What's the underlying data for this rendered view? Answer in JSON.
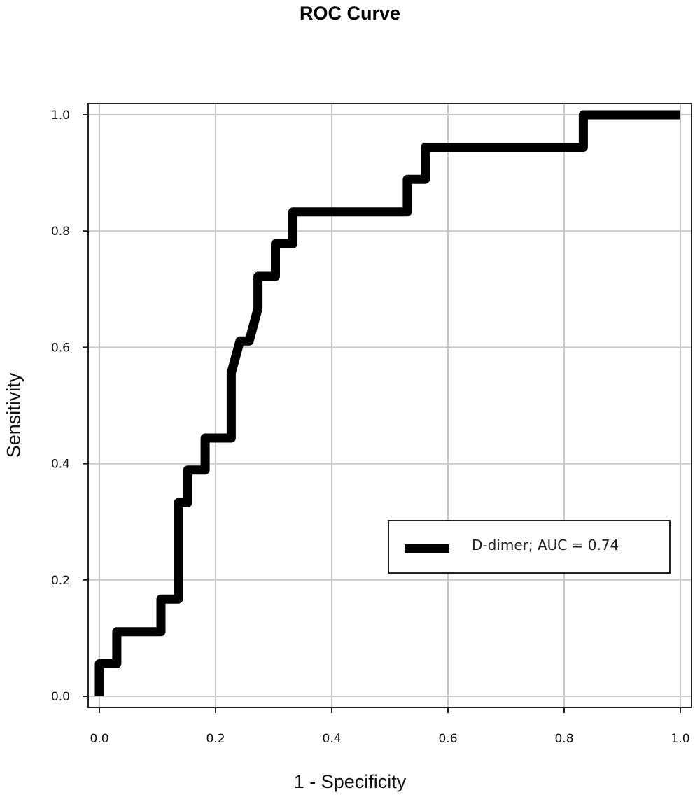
{
  "chart_data": {
    "type": "line",
    "title": "ROC Curve",
    "xlabel": "1 - Specificity",
    "ylabel": "Sensitivity",
    "xlim": [
      0,
      1
    ],
    "ylim": [
      0,
      1
    ],
    "x_ticks": [
      "0.0",
      "0.2",
      "0.4",
      "0.6",
      "0.8",
      "1.0"
    ],
    "y_ticks": [
      "0.0",
      "0.2",
      "0.4",
      "0.6",
      "0.8",
      "1.0"
    ],
    "grid": true,
    "legend_position": "lower right",
    "series": [
      {
        "name": "D-dimer; AUC = 0.74",
        "color": "#000000",
        "auc": 0.74,
        "x": [
          0,
          0,
          0.03,
          0.03,
          0.106,
          0.106,
          0.136,
          0.136,
          0.152,
          0.152,
          0.182,
          0.182,
          0.227,
          0.227,
          0.242,
          0.258,
          0.273,
          0.273,
          0.303,
          0.303,
          0.333,
          0.333,
          0.53,
          0.53,
          0.561,
          0.561,
          0.833,
          0.833,
          1.0
        ],
        "y": [
          0,
          0.056,
          0.056,
          0.111,
          0.111,
          0.167,
          0.167,
          0.333,
          0.333,
          0.389,
          0.389,
          0.444,
          0.444,
          0.556,
          0.611,
          0.611,
          0.667,
          0.722,
          0.722,
          0.778,
          0.778,
          0.833,
          0.833,
          0.889,
          0.889,
          0.944,
          0.944,
          1.0,
          1.0
        ]
      }
    ]
  },
  "legend": {
    "label": "D-dimer; AUC = 0.74"
  }
}
